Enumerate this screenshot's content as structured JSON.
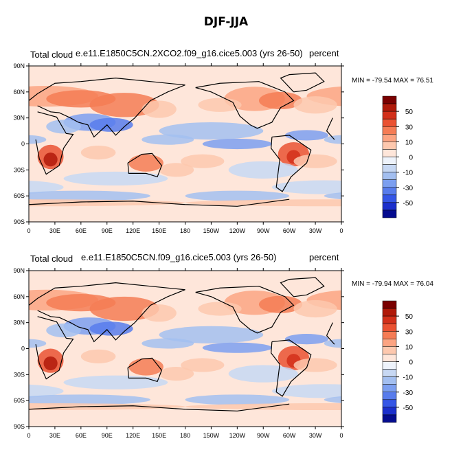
{
  "figure": {
    "title": "DJF-JJA",
    "lat_labels": [
      "90N",
      "60N",
      "30N",
      "0",
      "30S",
      "60S",
      "90S"
    ],
    "lon_labels": [
      "0",
      "30E",
      "60E",
      "90E",
      "120E",
      "150E",
      "180",
      "150W",
      "120W",
      "90W",
      "60W",
      "30W",
      "0"
    ],
    "colorbar_labels": [
      "50",
      "30",
      "10",
      "0",
      "-10",
      "-30",
      "-50"
    ],
    "colorbar_colors": [
      "#7a0000",
      "#b01a0a",
      "#d2301a",
      "#ea5232",
      "#f57c55",
      "#fca482",
      "#fdc8ae",
      "#fee6da",
      "#eef3fb",
      "#c7d8f3",
      "#a3bff0",
      "#7c9ff0",
      "#587cec",
      "#3556e6",
      "#1b2fcc",
      "#050c8f"
    ]
  },
  "panels": [
    {
      "variable_label": "Total cloud",
      "case_label": "e.e11.E1850C5CN.2XCO2.f09_g16.cice5.003 (yrs 26-50)",
      "units_label": "percent",
      "minmax": "MIN = -79.54 MAX =  76.51"
    },
    {
      "variable_label": "Total cloud",
      "case_label": "e.e11.E1850C5CN.f09_g16.cice5.003 (yrs 26-50)",
      "units_label": "percent",
      "minmax": "MIN = -79.94 MAX =  76.04"
    }
  ]
}
